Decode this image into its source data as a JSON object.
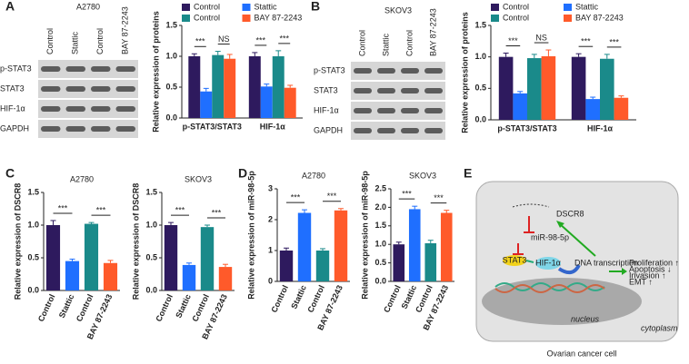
{
  "panels": [
    "A",
    "B",
    "C",
    "D",
    "E"
  ],
  "blots": [
    {
      "title": "A2780",
      "lanes": [
        "Control",
        "Stattic",
        "Control",
        "BAY 87-2243"
      ],
      "rows": [
        "p-STAT3",
        "STAT3",
        "HIF-1α",
        "GAPDH"
      ]
    },
    {
      "title": "SKOV3",
      "lanes": [
        "Control",
        "Stattic",
        "Control",
        "BAY 87-2243"
      ],
      "rows": [
        "p-STAT3",
        "STAT3",
        "HIF-1α",
        "GAPDH"
      ]
    }
  ],
  "chart_data": [
    {
      "type": "bar",
      "ylabel": "Relative expression of proteins",
      "categories": [
        "p-STAT3/STAT3",
        "HIF-1α"
      ],
      "series": [
        {
          "name": "Control",
          "color": "#2e1a5e",
          "values": [
            1.0,
            1.0
          ],
          "errors": [
            0.04,
            0.06
          ]
        },
        {
          "name": "Stattic",
          "color": "#1f6fff",
          "values": [
            0.43,
            0.51
          ],
          "errors": [
            0.05,
            0.04
          ]
        },
        {
          "name": "Control",
          "color": "#1a8a8a",
          "values": [
            1.02,
            1.0
          ],
          "errors": [
            0.06,
            0.09
          ]
        },
        {
          "name": "BAY 87-2243",
          "color": "#ff5a2a",
          "values": [
            0.96,
            0.49
          ],
          "errors": [
            0.07,
            0.04
          ]
        }
      ],
      "significance": [
        "***",
        "NS",
        "***",
        "***"
      ],
      "ylim": [
        0,
        1.5
      ],
      "yticks": [
        {
          "value": 0,
          "label": "0.0"
        },
        {
          "value": 0.5,
          "label": "0.5"
        },
        {
          "value": 1,
          "label": "1.0"
        },
        {
          "value": 1.5,
          "label": "1.5"
        }
      ]
    },
    {
      "type": "bar",
      "ylabel": "Relative expression of proteins",
      "categories": [
        "p-STAT3/STAT3",
        "HIF-1α"
      ],
      "series": [
        {
          "name": "Control",
          "color": "#2e1a5e",
          "values": [
            1.0,
            1.0
          ],
          "errors": [
            0.06,
            0.05
          ]
        },
        {
          "name": "Stattic",
          "color": "#1f6fff",
          "values": [
            0.42,
            0.33
          ],
          "errors": [
            0.03,
            0.03
          ]
        },
        {
          "name": "Control",
          "color": "#1a8a8a",
          "values": [
            0.98,
            0.97
          ],
          "errors": [
            0.06,
            0.07
          ]
        },
        {
          "name": "BAY 87-2243",
          "color": "#ff5a2a",
          "values": [
            1.01,
            0.35
          ],
          "errors": [
            0.1,
            0.03
          ]
        }
      ],
      "significance": [
        "***",
        "NS",
        "***",
        "***"
      ],
      "ylim": [
        0,
        1.5
      ],
      "yticks": [
        {
          "value": 0,
          "label": "0.0"
        },
        {
          "value": 0.5,
          "label": "0.5"
        },
        {
          "value": 1,
          "label": "1.0"
        },
        {
          "value": 1.5,
          "label": "1.5"
        }
      ]
    },
    {
      "type": "bar",
      "title": "A2780",
      "ylabel": "Relative expression of DSCR8",
      "categories": [
        "Control",
        "Stattic",
        "Control",
        "BAY 87-2243"
      ],
      "values": [
        1.0,
        0.45,
        1.02,
        0.42
      ],
      "errors": [
        0.07,
        0.03,
        0.02,
        0.04
      ],
      "colors": [
        "#2e1a5e",
        "#1f6fff",
        "#1a8a8a",
        "#ff5a2a"
      ],
      "significance": [
        "***",
        "***"
      ],
      "ylim": [
        0,
        1.5
      ],
      "yticks": [
        {
          "value": 0,
          "label": "0.0"
        },
        {
          "value": 0.5,
          "label": "0.5"
        },
        {
          "value": 1,
          "label": "1.0"
        },
        {
          "value": 1.5,
          "label": "1.5"
        }
      ]
    },
    {
      "type": "bar",
      "title": "SKOV3",
      "ylabel": "Relative expression of DSCR8",
      "categories": [
        "Control",
        "Stattic",
        "Control",
        "BAY 87-2243"
      ],
      "values": [
        1.0,
        0.39,
        0.97,
        0.36
      ],
      "errors": [
        0.04,
        0.03,
        0.03,
        0.04
      ],
      "colors": [
        "#2e1a5e",
        "#1f6fff",
        "#1a8a8a",
        "#ff5a2a"
      ],
      "significance": [
        "***",
        "***"
      ],
      "ylim": [
        0,
        1.5
      ],
      "yticks": [
        {
          "value": 0,
          "label": "0.0"
        },
        {
          "value": 0.5,
          "label": "0.5"
        },
        {
          "value": 1,
          "label": "1.0"
        },
        {
          "value": 1.5,
          "label": "1.5"
        }
      ]
    },
    {
      "type": "bar",
      "title": "A2780",
      "ylabel": "Relative expression of miR-98-5p",
      "categories": [
        "Control",
        "Stattic",
        "Control",
        "BAY 87-2243"
      ],
      "values": [
        1.0,
        2.22,
        1.0,
        2.3
      ],
      "errors": [
        0.08,
        0.1,
        0.06,
        0.06
      ],
      "colors": [
        "#2e1a5e",
        "#1f6fff",
        "#1a8a8a",
        "#ff5a2a"
      ],
      "significance": [
        "***",
        "***"
      ],
      "ylim": [
        0,
        3
      ],
      "yticks": [
        0,
        1,
        2,
        3
      ]
    },
    {
      "type": "bar",
      "title": "SKOV3",
      "ylabel": "Relative expression of miR-98-5p",
      "categories": [
        "Control",
        "Stattic",
        "Control",
        "BAY 87-2243"
      ],
      "values": [
        1.0,
        1.95,
        1.03,
        1.85
      ],
      "errors": [
        0.06,
        0.08,
        0.08,
        0.07
      ],
      "colors": [
        "#2e1a5e",
        "#1f6fff",
        "#1a8a8a",
        "#ff5a2a"
      ],
      "significance": [
        "***",
        "***"
      ],
      "ylim": [
        0,
        2.5
      ],
      "yticks": [
        {
          "value": 0,
          "label": "0.0"
        },
        {
          "value": 0.5,
          "label": "0.5"
        },
        {
          "value": 1,
          "label": "1.0"
        },
        {
          "value": 1.5,
          "label": "1.5"
        },
        {
          "value": 2,
          "label": "2.0"
        },
        {
          "value": 2.5,
          "label": "2.5"
        }
      ]
    }
  ],
  "diagram": {
    "dscr8": "DSCR8",
    "mirna": "miR-98-5p",
    "stat3": "STAT3",
    "hif": "HIF-1α",
    "transcription": "DNA transcription",
    "effects": [
      "Proliferation ↑",
      "Apoptosis ↓",
      "Invasion ↑",
      "EMT ↑"
    ],
    "nucleus": "nucleus",
    "cytoplasm": "cytoplasm",
    "caption": "Ovarian  cancer cell"
  }
}
